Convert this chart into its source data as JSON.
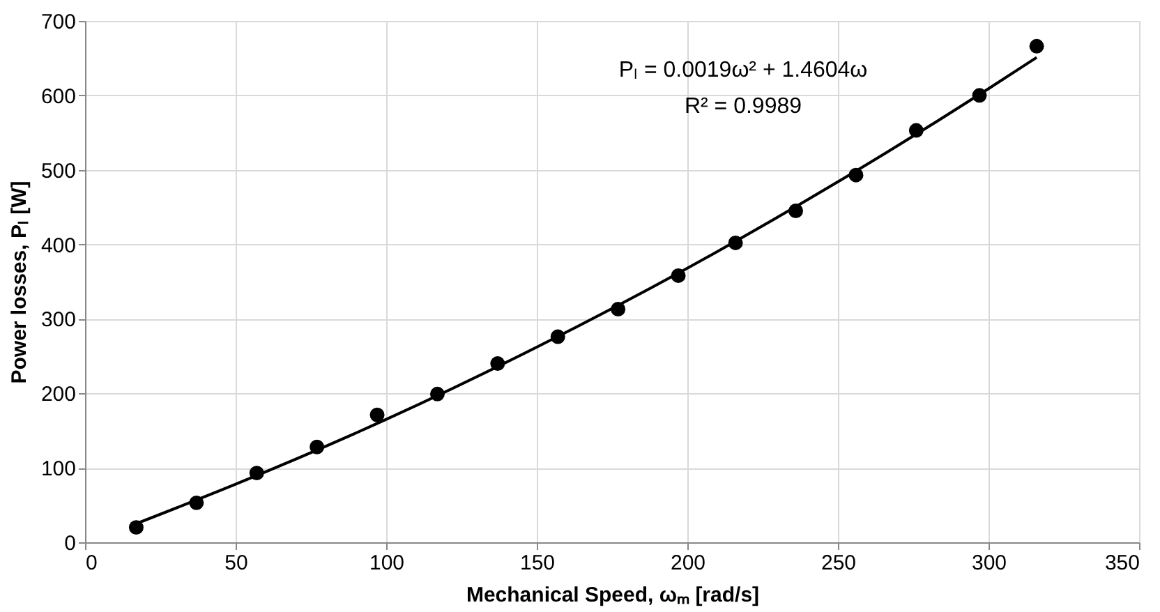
{
  "chart_data": {
    "type": "scatter",
    "xlabel": "Mechanical Speed, ωₘ [rad/s]",
    "ylabel": "Power losses, Pₗ [W]",
    "annotations": [
      "Pₗ = 0.0019ω² + 1.4604ω",
      "R² = 0.9989"
    ],
    "series": [
      {
        "color": "#000000",
        "marker": "circle",
        "x": [
          17,
          37,
          57,
          77,
          97,
          117,
          137,
          157,
          177,
          197,
          216,
          236,
          256,
          276,
          297,
          316
        ],
        "values": [
          20,
          53,
          93,
          128,
          171,
          199,
          240,
          276,
          313,
          358,
          402,
          445,
          493,
          553,
          600,
          666
        ]
      },
      {
        "type": "line",
        "color": "#000000",
        "line_style": "solid",
        "marker": "none",
        "x": [
          17,
          50,
          100,
          150,
          200,
          250,
          300,
          316
        ],
        "values": [
          25,
          78,
          165,
          262,
          368,
          484,
          609,
          651
        ]
      }
    ],
    "xlim": [
      0,
      350
    ],
    "xticks": [
      0,
      50,
      100,
      150,
      200,
      250,
      300,
      350
    ],
    "ylim": [
      0,
      700
    ],
    "yticks": [
      0,
      100,
      200,
      300,
      400,
      500,
      600,
      700
    ],
    "grid": true
  }
}
